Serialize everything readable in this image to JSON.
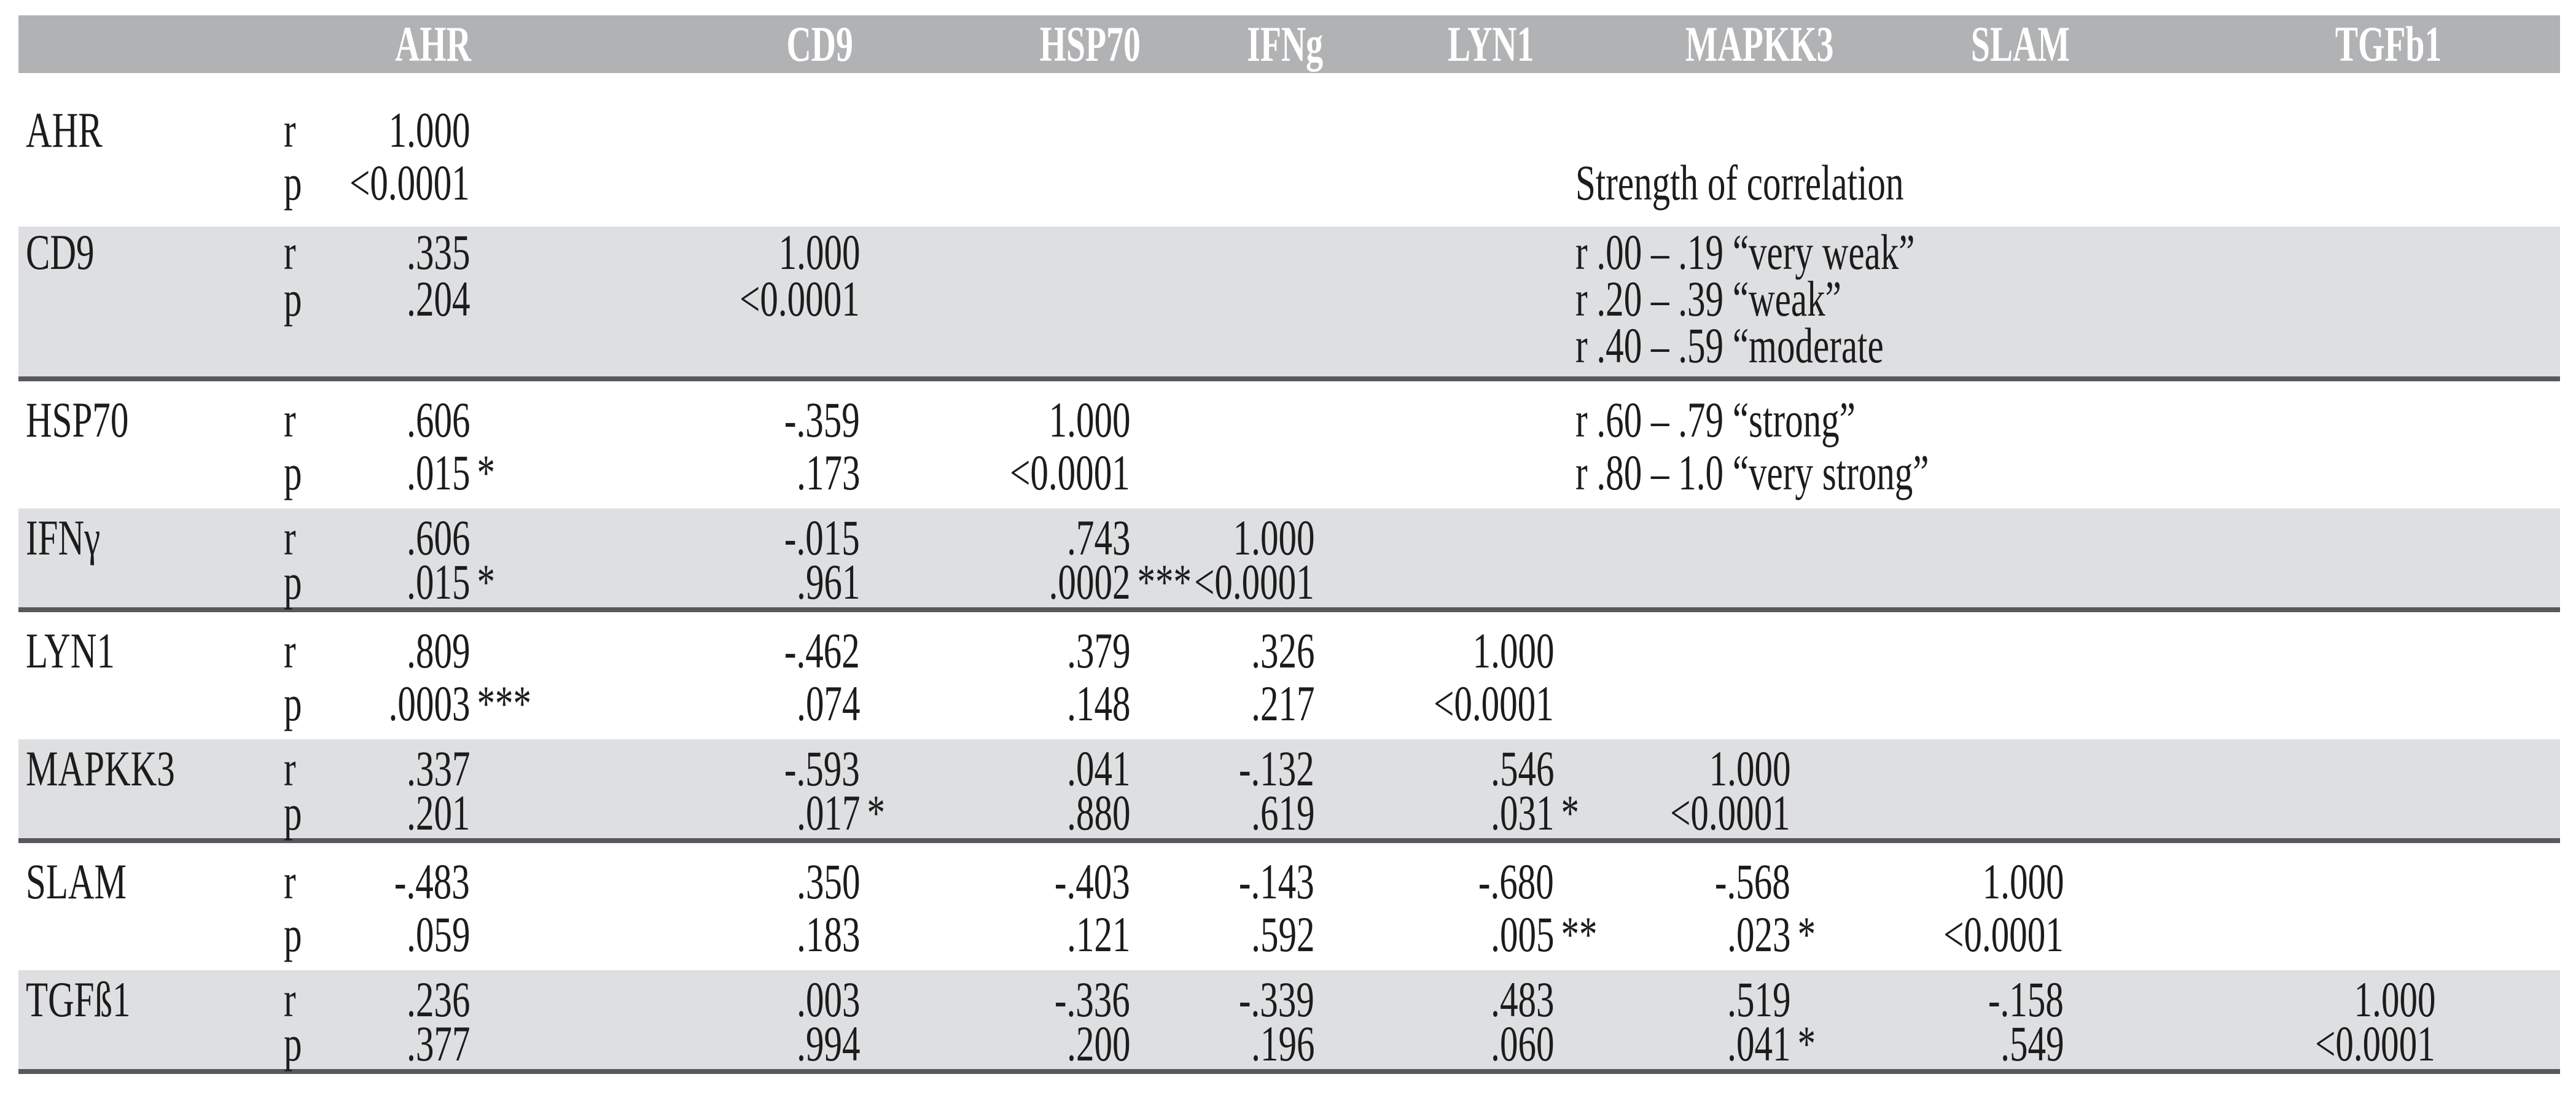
{
  "colors": {
    "header_bg": "#b1b2b4",
    "band_bg": "#dedfe1",
    "separator": "#58595c",
    "header_text": "#ffffff",
    "text": "#1c1c1c"
  },
  "table": {
    "header": [
      "AHR",
      "CD9",
      "HSP70",
      "IFNg",
      "LYN1",
      "MAPKK3",
      "SLAM",
      "TGFb1"
    ],
    "stat_labels": {
      "r": "r",
      "p": "p"
    },
    "rows": [
      {
        "label": "AHR",
        "r": [
          {
            "v": "1.000",
            "m": ""
          }
        ],
        "p": [
          {
            "v": "<0.0001",
            "m": ""
          }
        ]
      },
      {
        "label": "CD9",
        "r": [
          {
            "v": ".335",
            "m": ""
          },
          {
            "v": "1.000",
            "m": ""
          }
        ],
        "p": [
          {
            "v": ".204",
            "m": ""
          },
          {
            "v": "<0.0001",
            "m": ""
          }
        ]
      },
      {
        "label": "HSP70",
        "r": [
          {
            "v": ".606",
            "m": ""
          },
          {
            "v": "-.359",
            "m": ""
          },
          {
            "v": "1.000",
            "m": ""
          }
        ],
        "p": [
          {
            "v": ".015",
            "m": "*"
          },
          {
            "v": ".173",
            "m": ""
          },
          {
            "v": "<0.0001",
            "m": ""
          }
        ]
      },
      {
        "label": "IFNγ",
        "r": [
          {
            "v": ".606",
            "m": ""
          },
          {
            "v": "-.015",
            "m": ""
          },
          {
            "v": ".743",
            "m": ""
          },
          {
            "v": "1.000",
            "m": ""
          }
        ],
        "p": [
          {
            "v": ".015",
            "m": "*"
          },
          {
            "v": ".961",
            "m": ""
          },
          {
            "v": ".0002",
            "m": "***"
          },
          {
            "v": "<0.0001",
            "m": ""
          }
        ]
      },
      {
        "label": "LYN1",
        "r": [
          {
            "v": ".809",
            "m": ""
          },
          {
            "v": "-.462",
            "m": ""
          },
          {
            "v": ".379",
            "m": ""
          },
          {
            "v": ".326",
            "m": ""
          },
          {
            "v": "1.000",
            "m": ""
          }
        ],
        "p": [
          {
            "v": ".0003",
            "m": "***"
          },
          {
            "v": ".074",
            "m": ""
          },
          {
            "v": ".148",
            "m": ""
          },
          {
            "v": ".217",
            "m": ""
          },
          {
            "v": "<0.0001",
            "m": ""
          }
        ]
      },
      {
        "label": "MAPKK3",
        "r": [
          {
            "v": ".337",
            "m": ""
          },
          {
            "v": "-.593",
            "m": ""
          },
          {
            "v": ".041",
            "m": ""
          },
          {
            "v": "-.132",
            "m": ""
          },
          {
            "v": ".546",
            "m": ""
          },
          {
            "v": "1.000",
            "m": ""
          }
        ],
        "p": [
          {
            "v": ".201",
            "m": ""
          },
          {
            "v": ".017",
            "m": "*"
          },
          {
            "v": ".880",
            "m": ""
          },
          {
            "v": ".619",
            "m": ""
          },
          {
            "v": ".031",
            "m": "*"
          },
          {
            "v": "<0.0001",
            "m": ""
          }
        ]
      },
      {
        "label": "SLAM",
        "r": [
          {
            "v": "-.483",
            "m": ""
          },
          {
            "v": ".350",
            "m": ""
          },
          {
            "v": "-.403",
            "m": ""
          },
          {
            "v": "-.143",
            "m": ""
          },
          {
            "v": "-.680",
            "m": ""
          },
          {
            "v": "-.568",
            "m": ""
          },
          {
            "v": "1.000",
            "m": ""
          }
        ],
        "p": [
          {
            "v": ".059",
            "m": ""
          },
          {
            "v": ".183",
            "m": ""
          },
          {
            "v": ".121",
            "m": ""
          },
          {
            "v": ".592",
            "m": ""
          },
          {
            "v": ".005",
            "m": "**"
          },
          {
            "v": ".023",
            "m": "*"
          },
          {
            "v": "<0.0001",
            "m": ""
          }
        ]
      },
      {
        "label": "TGFß1",
        "r": [
          {
            "v": ".236",
            "m": ""
          },
          {
            "v": ".003",
            "m": ""
          },
          {
            "v": "-.336",
            "m": ""
          },
          {
            "v": "-.339",
            "m": ""
          },
          {
            "v": ".483",
            "m": ""
          },
          {
            "v": ".519",
            "m": ""
          },
          {
            "v": "-.158",
            "m": ""
          },
          {
            "v": "1.000",
            "m": ""
          }
        ],
        "p": [
          {
            "v": ".377",
            "m": ""
          },
          {
            "v": ".994",
            "m": ""
          },
          {
            "v": ".200",
            "m": ""
          },
          {
            "v": ".196",
            "m": ""
          },
          {
            "v": ".060",
            "m": ""
          },
          {
            "v": ".041",
            "m": "*"
          },
          {
            "v": ".549",
            "m": ""
          },
          {
            "v": "<0.0001",
            "m": ""
          }
        ]
      }
    ]
  },
  "legend": {
    "title": "Strength of correlation",
    "lines": [
      "r .00 – .19 “very weak”",
      "r .20 – .39 “weak”",
      "r .40 – .59 “moderate",
      "r .60 – .79 “strong”",
      "r .80 – 1.0 “very strong”"
    ]
  }
}
